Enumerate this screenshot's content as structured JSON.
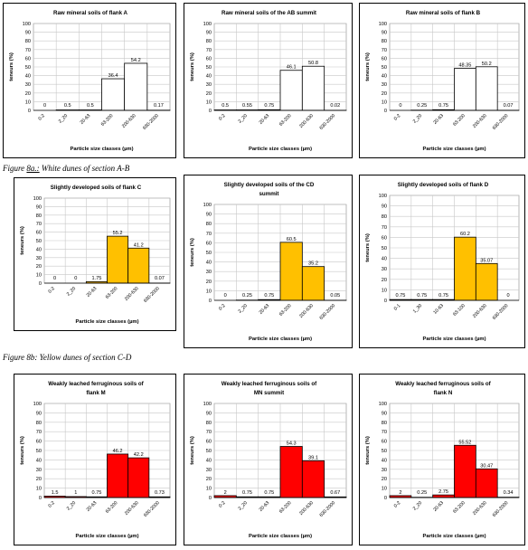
{
  "captions": [
    {
      "prefix": "Figure ",
      "underlined": "8a.:",
      "rest": " White dunes of section A-B"
    },
    {
      "prefix": "Figure 8b: Yellow dunes of section C-D",
      "underlined": "",
      "rest": ""
    }
  ],
  "colors": {
    "white": "#ffffff",
    "yellow": "#ffc000",
    "red": "#ff0000",
    "grid": "#c8c8c8"
  },
  "chart_data": [
    {
      "type": "bar",
      "title": [
        "Raw mineral soils of flank A"
      ],
      "ylabel": "teneurs (%)",
      "xlabel": "Particle size classes (µm)",
      "categories": [
        "0-2",
        "2_20",
        "20-63",
        "63-200",
        "200-630",
        "630-2000"
      ],
      "values": [
        0,
        0.5,
        0.5,
        36.4,
        54.2,
        0.17
      ],
      "labels": [
        "0",
        "0.5",
        "0.5",
        "36.4",
        "54.2",
        "0.17"
      ],
      "fill": "white",
      "ylim": [
        0,
        100
      ],
      "grid": true
    },
    {
      "type": "bar",
      "title": [
        "Raw mineral soils of the AB summit"
      ],
      "ylabel": "teneurs (%)",
      "xlabel": "Particle size classes (µm)",
      "categories": [
        "0-2",
        "2_20",
        "20-63",
        "63-200",
        "200-630",
        "630-2000"
      ],
      "values": [
        0.5,
        0.55,
        0.75,
        46.1,
        50.8,
        0.02
      ],
      "labels": [
        "0.5",
        "0.55",
        "0.75",
        "46.1",
        "50.8",
        "0.02"
      ],
      "fill": "white",
      "ylim": [
        0,
        100
      ],
      "grid": true
    },
    {
      "type": "bar",
      "title": [
        "Raw mineral soils of flank B"
      ],
      "ylabel": "teneurs (%)",
      "xlabel": "Particle size classes (µm)",
      "categories": [
        "0-2",
        "2_20",
        "20-63",
        "63-200",
        "200-630",
        "630-2000"
      ],
      "values": [
        0,
        0.25,
        0.75,
        48.35,
        50.2,
        0.07
      ],
      "labels": [
        "0",
        "0.25",
        "0.75",
        "48.35",
        "50.2",
        "0.07"
      ],
      "fill": "white",
      "ylim": [
        0,
        100
      ],
      "grid": true
    },
    {
      "type": "bar",
      "title": [
        "Slightly developed soils of flank C"
      ],
      "ylabel": "teneurs (%)",
      "xlabel": "Particle size classes (µm)",
      "categories": [
        "0-2",
        "2_20",
        "20-63",
        "63-200",
        "200-630",
        "630-2000"
      ],
      "values": [
        0,
        0,
        1.75,
        55.2,
        41.2,
        0.07
      ],
      "labels": [
        "0",
        "0",
        "1.75",
        "55.2",
        "41.2",
        "0.07"
      ],
      "fill": "yellow",
      "ylim": [
        0,
        100
      ],
      "grid": true
    },
    {
      "type": "bar",
      "title": [
        "Slightly developed soils of the CD",
        "summit"
      ],
      "ylabel": "teneurs (%)",
      "xlabel": "Particle size classes (µm)",
      "categories": [
        "0-2",
        "2_20",
        "20-63",
        "63-200",
        "200-630",
        "630-2000"
      ],
      "values": [
        0,
        0.25,
        0.75,
        60.5,
        35.2,
        0.05
      ],
      "labels": [
        "0",
        "0.25",
        "0.75",
        "60.5",
        "35.2",
        "0.05"
      ],
      "fill": "yellow",
      "ylim": [
        0,
        100
      ],
      "grid": true
    },
    {
      "type": "bar",
      "title": [
        "Slightly developed soils of flank D"
      ],
      "ylabel": "teneurs (%)",
      "xlabel": "Particle size classes (µm)",
      "categories": [
        "0-1",
        "1_30",
        "10-63",
        "63-100",
        "200-630",
        "630-2000"
      ],
      "values": [
        0.75,
        0.75,
        0.75,
        60.2,
        35.07,
        0
      ],
      "labels": [
        "0.75",
        "0.75",
        "0.75",
        "60.2",
        "35.07",
        "0"
      ],
      "fill": "yellow",
      "ylim": [
        0,
        100
      ],
      "grid": true
    },
    {
      "type": "bar",
      "title": [
        "Weakly leached ferruginous soils of",
        "flank M"
      ],
      "ylabel": "teneurs (%)",
      "xlabel": "Particle size classes (µm)",
      "categories": [
        "0-2",
        "2_20",
        "20-63",
        "63-200",
        "200-630",
        "630-2000"
      ],
      "values": [
        1.5,
        1,
        0.75,
        46.2,
        42.2,
        0.73
      ],
      "labels": [
        "1.5",
        "1",
        "0.75",
        "46.2",
        "42.2",
        "0.73"
      ],
      "fill": "red",
      "ylim": [
        0,
        100
      ],
      "grid": true
    },
    {
      "type": "bar",
      "title": [
        "Weakly leached ferruginous soils of",
        "MN summit"
      ],
      "ylabel": "teneurs (%)",
      "xlabel": "Particle size classes (µm)",
      "categories": [
        "0-2",
        "2_20",
        "20-63",
        "63-200",
        "200-630",
        "630-2000"
      ],
      "values": [
        2,
        0.75,
        0.75,
        54.3,
        39.1,
        0.67
      ],
      "labels": [
        "2",
        "0.75",
        "0.75",
        "54.3",
        "39.1",
        "0.67"
      ],
      "fill": "red",
      "ylim": [
        0,
        100
      ],
      "grid": true
    },
    {
      "type": "bar",
      "title": [
        "Weakly leached ferruginous soils of",
        "flank N"
      ],
      "ylabel": "teneurs (%)",
      "xlabel": "Particle size classes (µm)",
      "categories": [
        "0-2",
        "2_20",
        "20-63",
        "63-200",
        "200-630",
        "630-2000"
      ],
      "values": [
        2,
        0.25,
        2.75,
        55.52,
        30.47,
        0.34
      ],
      "labels": [
        "2",
        "0.25",
        "2.75",
        "55.52",
        "30.47",
        "0.34"
      ],
      "fill": "red",
      "ylim": [
        0,
        100
      ],
      "grid": true
    }
  ]
}
